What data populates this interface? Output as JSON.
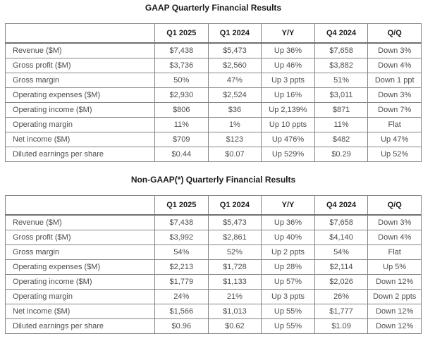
{
  "colors": {
    "background": "#ffffff",
    "table_border": "#858585",
    "table_outer_border": "#6f6f6f",
    "header_text": "#1b1b1b",
    "body_text": "#4d4d4d"
  },
  "tables": [
    {
      "title": "GAAP Quarterly Financial Results",
      "columns": [
        "",
        "Q1 2025",
        "Q1 2024",
        "Y/Y",
        "Q4 2024",
        "Q/Q"
      ],
      "rows": [
        [
          "Revenue ($M)",
          "$7,438",
          "$5,473",
          "Up 36%",
          "$7,658",
          "Down 3%"
        ],
        [
          "Gross profit ($M)",
          "$3,736",
          "$2,560",
          "Up 46%",
          "$3,882",
          "Down 4%"
        ],
        [
          "Gross margin",
          "50%",
          "47%",
          "Up 3 ppts",
          "51%",
          "Down 1 ppt"
        ],
        [
          "Operating expenses ($M)",
          "$2,930",
          "$2,524",
          "Up 16%",
          "$3,011",
          "Down 3%"
        ],
        [
          "Operating income ($M)",
          "$806",
          "$36",
          "Up 2,139%",
          "$871",
          "Down 7%"
        ],
        [
          "Operating margin",
          "11%",
          "1%",
          "Up 10 ppts",
          "11%",
          "Flat"
        ],
        [
          "Net income ($M)",
          "$709",
          "$123",
          "Up 476%",
          "$482",
          "Up 47%"
        ],
        [
          "Diluted earnings per share",
          "$0.44",
          "$0.07",
          "Up 529%",
          "$0.29",
          "Up 52%"
        ]
      ]
    },
    {
      "title": "Non-GAAP(*) Quarterly Financial Results",
      "columns": [
        "",
        "Q1 2025",
        "Q1 2024",
        "Y/Y",
        "Q4 2024",
        "Q/Q"
      ],
      "rows": [
        [
          "Revenue ($M)",
          "$7,438",
          "$5,473",
          "Up 36%",
          "$7,658",
          "Down 3%"
        ],
        [
          "Gross profit ($M)",
          "$3,992",
          "$2,861",
          "Up 40%",
          "$4,140",
          "Down 4%"
        ],
        [
          "Gross margin",
          "54%",
          "52%",
          "Up 2 ppts",
          "54%",
          "Flat"
        ],
        [
          "Operating expenses ($M)",
          "$2,213",
          "$1,728",
          "Up 28%",
          "$2,114",
          "Up 5%"
        ],
        [
          "Operating income ($M)",
          "$1,779",
          "$1,133",
          "Up 57%",
          "$2,026",
          "Down 12%"
        ],
        [
          "Operating margin",
          "24%",
          "21%",
          "Up 3 ppts",
          "26%",
          "Down 2 ppts"
        ],
        [
          "Net income ($M)",
          "$1,566",
          "$1,013",
          "Up 55%",
          "$1,777",
          "Down 12%"
        ],
        [
          "Diluted earnings per share",
          "$0.96",
          "$0.62",
          "Up 55%",
          "$1.09",
          "Down 12%"
        ]
      ]
    }
  ]
}
